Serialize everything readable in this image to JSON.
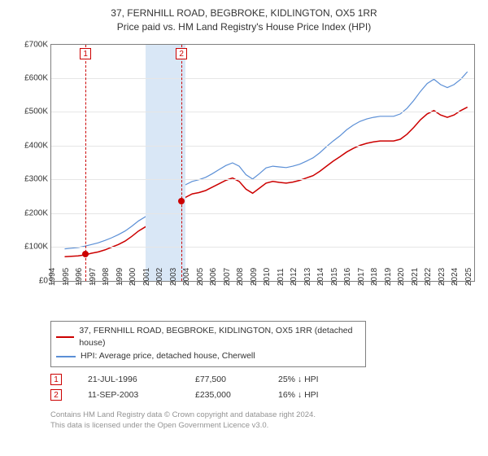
{
  "title": {
    "line1": "37, FERNHILL ROAD, BEGBROKE, KIDLINGTON, OX5 1RR",
    "line2": "Price paid vs. HM Land Registry's House Price Index (HPI)"
  },
  "chart": {
    "type": "line",
    "background_color": "#ffffff",
    "grid_color": "#e6e6e6",
    "axis_color": "#808080",
    "x": {
      "min": 1994,
      "max": 2025.5,
      "ticks": [
        1994,
        1995,
        1996,
        1997,
        1998,
        1999,
        2000,
        2001,
        2002,
        2003,
        2004,
        2005,
        2006,
        2007,
        2008,
        2009,
        2010,
        2011,
        2012,
        2013,
        2014,
        2015,
        2016,
        2017,
        2018,
        2019,
        2020,
        2021,
        2022,
        2023,
        2024,
        2025
      ]
    },
    "y": {
      "min": 0,
      "max": 700000,
      "ticks": [
        0,
        100000,
        200000,
        300000,
        400000,
        500000,
        600000,
        700000
      ],
      "labels": [
        "£0",
        "£100K",
        "£200K",
        "£300K",
        "£400K",
        "£500K",
        "£600K",
        "£700K"
      ]
    },
    "shaded_band": {
      "from": 2001,
      "to": 2004,
      "color": "#d9e7f6"
    },
    "markers": [
      {
        "num": "1",
        "year": 1996.55,
        "value": 77500
      },
      {
        "num": "2",
        "year": 2003.7,
        "value": 235000
      }
    ],
    "series": [
      {
        "name": "37, FERNHILL ROAD, BEGBROKE, KIDLINGTON, OX5 1RR (detached house)",
        "color": "#cc0000",
        "width": 1.5,
        "data": [
          [
            1995.0,
            72000
          ],
          [
            1995.5,
            73000
          ],
          [
            1996.0,
            74000
          ],
          [
            1996.55,
            77500
          ],
          [
            1997.0,
            82000
          ],
          [
            1997.5,
            86000
          ],
          [
            1998.0,
            92000
          ],
          [
            1998.5,
            100000
          ],
          [
            1999.0,
            108000
          ],
          [
            1999.5,
            118000
          ],
          [
            2000.0,
            132000
          ],
          [
            2000.5,
            148000
          ],
          [
            2001.0,
            160000
          ],
          [
            2001.5,
            175000
          ],
          [
            2002.0,
            195000
          ],
          [
            2002.5,
            212000
          ],
          [
            2003.0,
            225000
          ],
          [
            2003.7,
            235000
          ],
          [
            2004.0,
            248000
          ],
          [
            2004.5,
            258000
          ],
          [
            2005.0,
            262000
          ],
          [
            2005.5,
            268000
          ],
          [
            2006.0,
            278000
          ],
          [
            2006.5,
            288000
          ],
          [
            2007.0,
            298000
          ],
          [
            2007.5,
            305000
          ],
          [
            2008.0,
            295000
          ],
          [
            2008.5,
            272000
          ],
          [
            2009.0,
            260000
          ],
          [
            2009.5,
            275000
          ],
          [
            2010.0,
            290000
          ],
          [
            2010.5,
            295000
          ],
          [
            2011.0,
            292000
          ],
          [
            2011.5,
            290000
          ],
          [
            2012.0,
            293000
          ],
          [
            2012.5,
            298000
          ],
          [
            2013.0,
            305000
          ],
          [
            2013.5,
            312000
          ],
          [
            2014.0,
            325000
          ],
          [
            2014.5,
            340000
          ],
          [
            2015.0,
            355000
          ],
          [
            2015.5,
            368000
          ],
          [
            2016.0,
            382000
          ],
          [
            2016.5,
            393000
          ],
          [
            2017.0,
            402000
          ],
          [
            2017.5,
            408000
          ],
          [
            2018.0,
            412000
          ],
          [
            2018.5,
            415000
          ],
          [
            2019.0,
            415000
          ],
          [
            2019.5,
            415000
          ],
          [
            2020.0,
            420000
          ],
          [
            2020.5,
            435000
          ],
          [
            2021.0,
            455000
          ],
          [
            2021.5,
            478000
          ],
          [
            2022.0,
            495000
          ],
          [
            2022.5,
            505000
          ],
          [
            2023.0,
            492000
          ],
          [
            2023.5,
            485000
          ],
          [
            2024.0,
            492000
          ],
          [
            2024.5,
            505000
          ],
          [
            2025.0,
            515000
          ]
        ]
      },
      {
        "name": "HPI: Average price, detached house, Cherwell",
        "color": "#5b8fd6",
        "width": 1.2,
        "data": [
          [
            1995.0,
            95000
          ],
          [
            1995.5,
            97000
          ],
          [
            1996.0,
            99000
          ],
          [
            1996.5,
            103000
          ],
          [
            1997.0,
            108000
          ],
          [
            1997.5,
            113000
          ],
          [
            1998.0,
            120000
          ],
          [
            1998.5,
            128000
          ],
          [
            1999.0,
            137000
          ],
          [
            1999.5,
            148000
          ],
          [
            2000.0,
            162000
          ],
          [
            2000.5,
            178000
          ],
          [
            2001.0,
            190000
          ],
          [
            2001.5,
            205000
          ],
          [
            2002.0,
            225000
          ],
          [
            2002.5,
            245000
          ],
          [
            2003.0,
            260000
          ],
          [
            2003.5,
            272000
          ],
          [
            2004.0,
            285000
          ],
          [
            2004.5,
            295000
          ],
          [
            2005.0,
            300000
          ],
          [
            2005.5,
            307000
          ],
          [
            2006.0,
            318000
          ],
          [
            2006.5,
            330000
          ],
          [
            2007.0,
            342000
          ],
          [
            2007.5,
            350000
          ],
          [
            2008.0,
            340000
          ],
          [
            2008.5,
            315000
          ],
          [
            2009.0,
            302000
          ],
          [
            2009.5,
            318000
          ],
          [
            2010.0,
            335000
          ],
          [
            2010.5,
            340000
          ],
          [
            2011.0,
            338000
          ],
          [
            2011.5,
            336000
          ],
          [
            2012.0,
            340000
          ],
          [
            2012.5,
            346000
          ],
          [
            2013.0,
            355000
          ],
          [
            2013.5,
            365000
          ],
          [
            2014.0,
            380000
          ],
          [
            2014.5,
            398000
          ],
          [
            2015.0,
            415000
          ],
          [
            2015.5,
            430000
          ],
          [
            2016.0,
            448000
          ],
          [
            2016.5,
            462000
          ],
          [
            2017.0,
            473000
          ],
          [
            2017.5,
            480000
          ],
          [
            2018.0,
            485000
          ],
          [
            2018.5,
            488000
          ],
          [
            2019.0,
            488000
          ],
          [
            2019.5,
            488000
          ],
          [
            2020.0,
            495000
          ],
          [
            2020.5,
            512000
          ],
          [
            2021.0,
            535000
          ],
          [
            2021.5,
            562000
          ],
          [
            2022.0,
            585000
          ],
          [
            2022.5,
            598000
          ],
          [
            2023.0,
            582000
          ],
          [
            2023.5,
            573000
          ],
          [
            2024.0,
            582000
          ],
          [
            2024.5,
            598000
          ],
          [
            2025.0,
            620000
          ]
        ]
      }
    ]
  },
  "legend": {
    "items": [
      {
        "color": "#cc0000",
        "label": "37, FERNHILL ROAD, BEGBROKE, KIDLINGTON, OX5 1RR (detached house)"
      },
      {
        "color": "#5b8fd6",
        "label": "HPI: Average price, detached house, Cherwell"
      }
    ]
  },
  "sales": [
    {
      "num": "1",
      "date": "21-JUL-1996",
      "price": "£77,500",
      "delta": "25% ↓ HPI"
    },
    {
      "num": "2",
      "date": "11-SEP-2003",
      "price": "£235,000",
      "delta": "16% ↓ HPI"
    }
  ],
  "footer": {
    "line1": "Contains HM Land Registry data © Crown copyright and database right 2024.",
    "line2": "This data is licensed under the Open Government Licence v3.0."
  }
}
